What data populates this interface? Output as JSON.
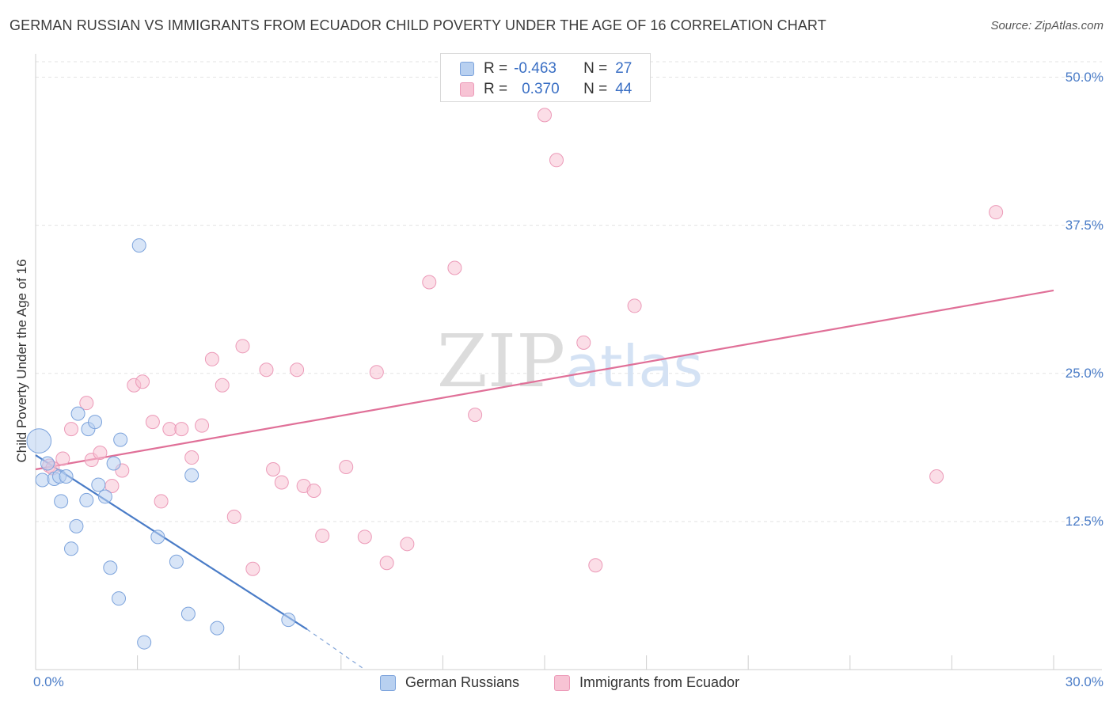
{
  "chart_data": {
    "type": "scatter",
    "title": "GERMAN RUSSIAN VS IMMIGRANTS FROM ECUADOR CHILD POVERTY UNDER THE AGE OF 16 CORRELATION CHART",
    "source": "Source: ZipAtlas.com",
    "xlabel": "",
    "ylabel": "Child Poverty Under the Age of 16",
    "xlim": [
      0,
      30
    ],
    "ylim": [
      0,
      50
    ],
    "x_tick_labels": [
      "0.0%",
      "30.0%"
    ],
    "y_ticks": [
      {
        "value": 12.5,
        "label": "12.5%"
      },
      {
        "value": 25.0,
        "label": "25.0%"
      },
      {
        "value": 37.5,
        "label": "37.5%"
      },
      {
        "value": 50.0,
        "label": "50.0%"
      }
    ],
    "watermark": "ZIPatlas",
    "series": [
      {
        "name": "German Russians",
        "color": "#4a7cc7",
        "fill": "#b8d0f0",
        "stroke": "#7ca3dc",
        "R": "-0.463",
        "N": "27",
        "points": [
          [
            0.1,
            19.3,
            1.8
          ],
          [
            0.2,
            16.0,
            1
          ],
          [
            0.35,
            17.4,
            1
          ],
          [
            0.55,
            16.1,
            1
          ],
          [
            0.7,
            16.3,
            1
          ],
          [
            0.75,
            14.2,
            1
          ],
          [
            0.9,
            16.3,
            1
          ],
          [
            1.05,
            10.2,
            1
          ],
          [
            1.2,
            12.1,
            1
          ],
          [
            1.25,
            21.6,
            1
          ],
          [
            1.5,
            14.3,
            1
          ],
          [
            1.55,
            20.3,
            1
          ],
          [
            1.75,
            20.9,
            1
          ],
          [
            1.85,
            15.6,
            1
          ],
          [
            2.05,
            14.6,
            1
          ],
          [
            2.2,
            8.6,
            1
          ],
          [
            2.3,
            17.4,
            1
          ],
          [
            2.45,
            6.0,
            1
          ],
          [
            2.5,
            19.4,
            1
          ],
          [
            3.05,
            35.8,
            1
          ],
          [
            3.2,
            2.3,
            1
          ],
          [
            3.6,
            11.2,
            1
          ],
          [
            4.15,
            9.1,
            1
          ],
          [
            4.5,
            4.7,
            1
          ],
          [
            4.6,
            16.4,
            1
          ],
          [
            5.35,
            3.5,
            1
          ],
          [
            7.45,
            4.2,
            1
          ]
        ],
        "trend": {
          "x1": 0,
          "y1": 18.1,
          "x2": 8.0,
          "y2": 3.4,
          "dash_x2": 9.7,
          "dash_y2": 0
        }
      },
      {
        "name": "Immigrants from Ecuador",
        "color": "#e07098",
        "fill": "#f7c3d4",
        "stroke": "#ec9ab8",
        "R": "0.370",
        "N": "44",
        "points": [
          [
            0.4,
            17.2,
            1
          ],
          [
            0.5,
            17.0,
            1
          ],
          [
            0.8,
            17.8,
            1
          ],
          [
            1.05,
            20.3,
            1
          ],
          [
            1.5,
            22.5,
            1
          ],
          [
            1.65,
            17.7,
            1
          ],
          [
            1.9,
            18.3,
            1
          ],
          [
            2.25,
            15.5,
            1
          ],
          [
            2.55,
            16.8,
            1
          ],
          [
            2.9,
            24.0,
            1
          ],
          [
            3.15,
            24.3,
            1
          ],
          [
            3.45,
            20.9,
            1
          ],
          [
            3.7,
            14.2,
            1
          ],
          [
            3.95,
            20.3,
            1
          ],
          [
            4.3,
            20.3,
            1
          ],
          [
            4.6,
            17.9,
            1
          ],
          [
            4.9,
            20.6,
            1
          ],
          [
            5.2,
            26.2,
            1
          ],
          [
            5.5,
            24.0,
            1
          ],
          [
            5.85,
            12.9,
            1
          ],
          [
            6.1,
            27.3,
            1
          ],
          [
            6.4,
            8.5,
            1
          ],
          [
            6.8,
            25.3,
            1
          ],
          [
            7.0,
            16.9,
            1
          ],
          [
            7.25,
            15.8,
            1
          ],
          [
            7.7,
            25.3,
            1
          ],
          [
            7.9,
            15.5,
            1
          ],
          [
            8.2,
            15.1,
            1
          ],
          [
            8.45,
            11.3,
            1
          ],
          [
            9.15,
            17.1,
            1
          ],
          [
            9.7,
            11.2,
            1
          ],
          [
            10.05,
            25.1,
            1
          ],
          [
            10.35,
            9.0,
            1
          ],
          [
            10.95,
            10.6,
            1
          ],
          [
            11.6,
            32.7,
            1
          ],
          [
            12.35,
            33.9,
            1
          ],
          [
            12.95,
            21.5,
            1
          ],
          [
            15.0,
            46.8,
            1
          ],
          [
            15.35,
            43.0,
            1
          ],
          [
            16.15,
            27.6,
            1
          ],
          [
            16.5,
            8.8,
            1
          ],
          [
            17.65,
            30.7,
            1
          ],
          [
            26.55,
            16.3,
            1
          ],
          [
            28.3,
            38.6,
            1
          ]
        ],
        "trend": {
          "x1": 0,
          "y1": 16.9,
          "x2": 30,
          "y2": 32.0
        }
      }
    ]
  },
  "legend": {
    "r_label": "R =",
    "n_label": "N ="
  }
}
